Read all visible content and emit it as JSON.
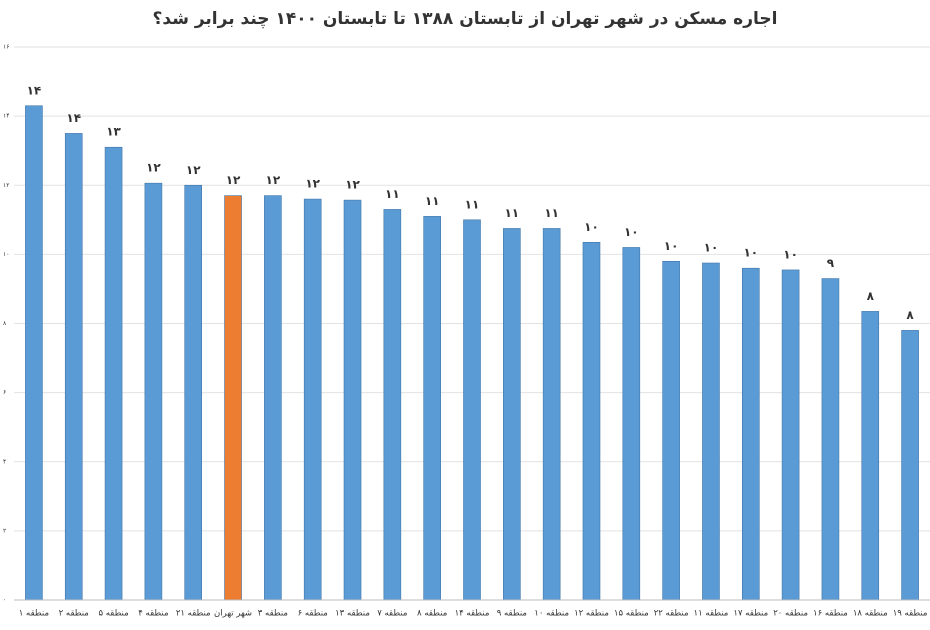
{
  "chart_data": {
    "type": "bar",
    "title": "اجاره مسکن در شهر تهران از  تابستان ۱۳۸۸ تا تابستان ۱۴۰۰ چند برابر شد؟",
    "categories": [
      "منطقه ۱",
      "منطقه ۲",
      "منطقه ۵",
      "منطقه ۴",
      "منطقه ۲۱",
      "شهر تهران",
      "منطقه ۳",
      "منطقه ۶",
      "منطقه ۱۳",
      "منطقه ۷",
      "منطقه ۸",
      "منطقه ۱۴",
      "منطقه ۹",
      "منطقه ۱۰",
      "منطقه ۱۲",
      "منطقه ۱۵",
      "منطقه ۲۲",
      "منطقه ۱۱",
      "منطقه ۱۷",
      "منطقه ۲۰",
      "منطقه ۱۶",
      "منطقه ۱۸",
      "منطقه ۱۹"
    ],
    "values": [
      14.3,
      13.5,
      13.1,
      12.06,
      12.0,
      11.7,
      11.7,
      11.6,
      11.57,
      11.3,
      11.1,
      11.0,
      10.75,
      10.75,
      10.35,
      10.2,
      9.8,
      9.75,
      9.6,
      9.55,
      9.3,
      8.35,
      7.8
    ],
    "value_labels": [
      "۱۴",
      "۱۴",
      "۱۳",
      "۱۲",
      "۱۲",
      "۱۲",
      "۱۲",
      "۱۲",
      "۱۲",
      "۱۱",
      "۱۱",
      "۱۱",
      "۱۱",
      "۱۱",
      "۱۰",
      "۱۰",
      "۱۰",
      "۱۰",
      "۱۰",
      "۱۰",
      "۹",
      "۸",
      "۸"
    ],
    "colors": [
      "#5b9bd5",
      "#5b9bd5",
      "#5b9bd5",
      "#5b9bd5",
      "#5b9bd5",
      "#ed7d31",
      "#5b9bd5",
      "#5b9bd5",
      "#5b9bd5",
      "#5b9bd5",
      "#5b9bd5",
      "#5b9bd5",
      "#5b9bd5",
      "#5b9bd5",
      "#5b9bd5",
      "#5b9bd5",
      "#5b9bd5",
      "#5b9bd5",
      "#5b9bd5",
      "#5b9bd5",
      "#5b9bd5",
      "#5b9bd5",
      "#5b9bd5"
    ],
    "ylim": [
      0,
      16
    ],
    "yticks": [
      {
        "value": 0,
        "label": "۰"
      },
      {
        "value": 2,
        "label": "۲"
      },
      {
        "value": 4,
        "label": "۴"
      },
      {
        "value": 6,
        "label": "۶"
      },
      {
        "value": 8,
        "label": "۸"
      },
      {
        "value": 10,
        "label": "۱۰"
      },
      {
        "value": 12,
        "label": "۱۲"
      },
      {
        "value": 14,
        "label": "۱۴"
      },
      {
        "value": 16,
        "label": "۱۶"
      }
    ],
    "grid": true
  }
}
